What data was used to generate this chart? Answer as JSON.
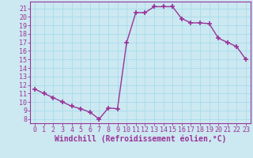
{
  "x": [
    0,
    1,
    2,
    3,
    4,
    5,
    6,
    7,
    8,
    9,
    10,
    11,
    12,
    13,
    14,
    15,
    16,
    17,
    18,
    19,
    20,
    21,
    22,
    23
  ],
  "y": [
    11.5,
    11.0,
    10.5,
    10.0,
    9.5,
    9.2,
    8.8,
    8.0,
    9.3,
    9.2,
    17.0,
    20.5,
    20.5,
    21.2,
    21.2,
    21.2,
    19.8,
    19.3,
    19.3,
    19.2,
    17.5,
    17.0,
    16.5,
    15.0
  ],
  "line_color": "#993399",
  "marker": "+",
  "marker_size": 4,
  "linewidth": 1.0,
  "xlabel": "Windchill (Refroidissement éolien,°C)",
  "xlabel_fontsize": 7.0,
  "ylabel_ticks": [
    8,
    9,
    10,
    11,
    12,
    13,
    14,
    15,
    16,
    17,
    18,
    19,
    20,
    21
  ],
  "xlim": [
    -0.5,
    23.5
  ],
  "ylim": [
    7.5,
    21.8
  ],
  "xtick_labels": [
    "0",
    "1",
    "2",
    "3",
    "4",
    "5",
    "6",
    "7",
    "8",
    "9",
    "10",
    "11",
    "12",
    "13",
    "14",
    "15",
    "16",
    "17",
    "18",
    "19",
    "20",
    "21",
    "22",
    "23"
  ],
  "background_color": "#cce8f0",
  "grid_color": "#aaddee",
  "tick_color": "#993399",
  "tick_fontsize": 6.0,
  "spine_color": "#993399"
}
